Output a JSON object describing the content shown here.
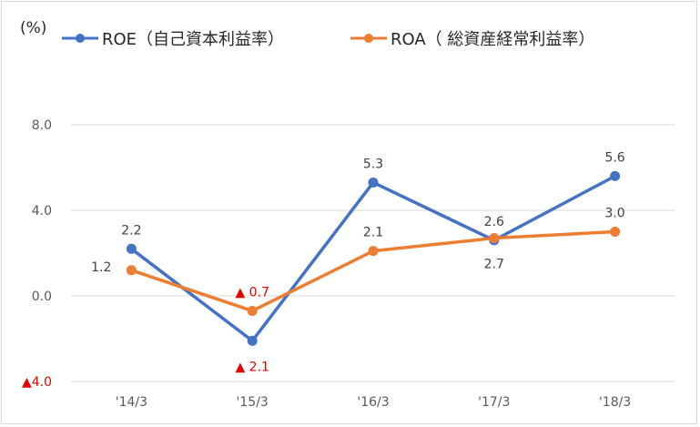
{
  "chart_data": {
    "type": "line",
    "unit_label": "(%)",
    "categories": [
      "'14/3",
      "'15/3",
      "'16/3",
      "'17/3",
      "'18/3"
    ],
    "y_ticks": [
      {
        "value": 8,
        "label": "8.0"
      },
      {
        "value": 4,
        "label": "4.0"
      },
      {
        "value": 0,
        "label": "0.0"
      },
      {
        "value": -4,
        "label": "▲4.0"
      }
    ],
    "ylim": [
      -4,
      8
    ],
    "grid": true,
    "legend_position": "top",
    "series": [
      {
        "name": "ROE（自己資本利益率）",
        "color": "#4472c4",
        "values": [
          2.2,
          -2.1,
          5.3,
          2.6,
          5.6
        ],
        "labels": [
          "2.2",
          "▲ 2.1",
          "5.3",
          "2.6",
          "5.6"
        ],
        "label_placement": [
          "above",
          "below",
          "above",
          "above",
          "above"
        ]
      },
      {
        "name": "ROA（ 総資産経常利益率）",
        "color": "#ed7d31",
        "values": [
          1.2,
          -0.7,
          2.1,
          2.7,
          3.0
        ],
        "labels": [
          "1.2",
          "▲ 0.7",
          "2.1",
          "2.7",
          "3.0"
        ],
        "label_placement": [
          "left",
          "above",
          "above",
          "below",
          "above"
        ]
      }
    ],
    "negative_label_color": "#e60000",
    "axis_text_color": "#595959",
    "grid_color": "#d9d9d9"
  }
}
